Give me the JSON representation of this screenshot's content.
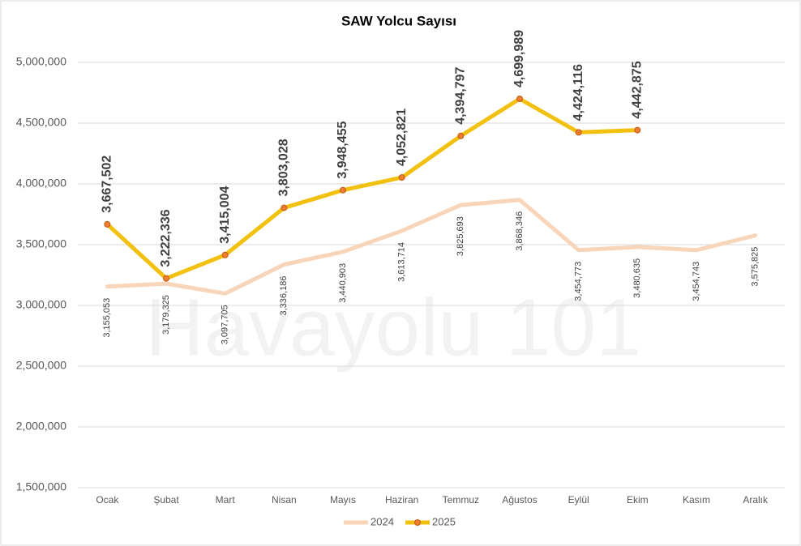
{
  "chart_data": {
    "type": "line",
    "title": "SAW Yolcu Sayısı",
    "watermark": "Havayolu 101",
    "categories": [
      "Ocak",
      "Şubat",
      "Mart",
      "Nisan",
      "Mayıs",
      "Haziran",
      "Temmuz",
      "Ağustos",
      "Eylül",
      "Ekim",
      "Kasım",
      "Aralık"
    ],
    "series": [
      {
        "name": "2024",
        "color": "#f8d5b8",
        "values": [
          3155053,
          3179325,
          3097705,
          3336186,
          3440903,
          3613714,
          3825693,
          3868346,
          3454773,
          3480635,
          3454743,
          3575825
        ],
        "value_labels": [
          "3,155,053",
          "3,179,325",
          "3,097,705",
          "3,336,186",
          "3,440,903",
          "3,613,714",
          "3,825,693",
          "3,868,346",
          "3,454,773",
          "3,480,635",
          "3,454,743",
          "3,575,825"
        ]
      },
      {
        "name": "2025",
        "color": "#f2c00e",
        "values": [
          3667502,
          3222336,
          3415004,
          3803028,
          3948455,
          4052821,
          4394797,
          4699989,
          4424116,
          4442875,
          null,
          null
        ],
        "value_labels": [
          "3,667,502",
          "3,222,336",
          "3,415,004",
          "3,803,028",
          "3,948,455",
          "4,052,821",
          "4,394,797",
          "4,699,989",
          "4,424,116",
          "4,442,875",
          null,
          null
        ]
      }
    ],
    "ylim": [
      1500000,
      5000000
    ],
    "yticks": [
      {
        "value": 1500000,
        "label": "1,500,000"
      },
      {
        "value": 2000000,
        "label": "2,000,000"
      },
      {
        "value": 2500000,
        "label": "2,500,000"
      },
      {
        "value": 3000000,
        "label": "3,000,000"
      },
      {
        "value": 3500000,
        "label": "3,500,000"
      },
      {
        "value": 4000000,
        "label": "4,000,000"
      },
      {
        "value": 4500000,
        "label": "4,500,000"
      },
      {
        "value": 5000000,
        "label": "5,000,000"
      }
    ],
    "grid": true,
    "legend": "bottom"
  }
}
